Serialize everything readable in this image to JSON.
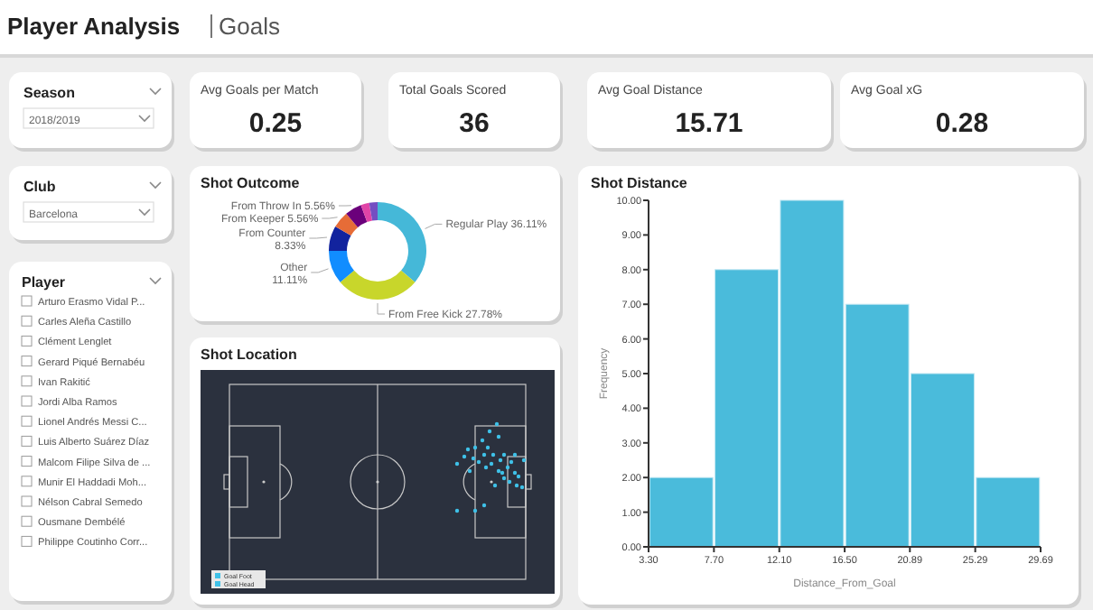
{
  "chart_data": [
    {
      "type": "other",
      "title": "Player Analysis",
      "subtitle": "Goals"
    },
    {
      "type": "other",
      "title": "Season",
      "annotations": [
        "2018/2019"
      ]
    },
    {
      "type": "other",
      "title": "Avg Goals per Match",
      "annotations": [
        "0.25"
      ]
    },
    {
      "type": "other",
      "title": "Total Goals Scored",
      "annotations": [
        "36"
      ]
    },
    {
      "type": "other",
      "title": "Avg Goal Distance",
      "annotations": [
        "15.71"
      ]
    },
    {
      "type": "other",
      "title": "Avg Goal xG",
      "annotations": [
        "0.28"
      ]
    },
    {
      "type": "other",
      "title": "Club",
      "annotations": [
        "Barcelona"
      ]
    },
    {
      "type": "donut",
      "title": "Shot Outcome",
      "categories": [
        "Regular Play",
        "From Free Kick",
        "Other",
        "From Counter",
        "From Keeper",
        "From Throw In",
        null,
        null
      ],
      "values": [
        36.11,
        27.78,
        11.11,
        8.33,
        5.56,
        5.56,
        2.78,
        2.78
      ],
      "value_labels": [
        "36.11%",
        "27.78%",
        "11.11%",
        "8.33%",
        "5.56%",
        "5.56%",
        null,
        null
      ],
      "colors": [
        "#45b8d8",
        "#c8d62b",
        "#118dff",
        "#12239e",
        "#e66c37",
        "#6b007b",
        "#e044a7",
        "#744ec2"
      ]
    },
    {
      "type": "histogram",
      "title": "Shot Distance",
      "xlabel": "Distance_From_Goal",
      "ylabel": "Frequency",
      "bins": [
        3.3,
        7.7,
        12.1,
        16.5,
        20.89,
        25.29,
        29.69
      ],
      "values": [
        2,
        8,
        10,
        7,
        5,
        2
      ],
      "color": "#4abbdb",
      "xlim": [
        3.3,
        29.69
      ],
      "xticks": [
        {
          "value": 3.3,
          "label": "3.30"
        },
        {
          "value": 7.7,
          "label": "7.70"
        },
        {
          "value": 12.1,
          "label": "12.10"
        },
        {
          "value": 16.5,
          "label": "16.50"
        },
        {
          "value": 20.89,
          "label": "20.89"
        },
        {
          "value": 25.29,
          "label": "25.29"
        },
        {
          "value": 29.69,
          "label": "29.69"
        }
      ],
      "ylim": [
        0,
        10
      ],
      "yticks": [
        {
          "value": 0,
          "label": "0.00"
        },
        {
          "value": 1,
          "label": "1.00"
        },
        {
          "value": 2,
          "label": "2.00"
        },
        {
          "value": 3,
          "label": "3.00"
        },
        {
          "value": 4,
          "label": "4.00"
        },
        {
          "value": 5,
          "label": "5.00"
        },
        {
          "value": 6,
          "label": "6.00"
        },
        {
          "value": 7,
          "label": "7.00"
        },
        {
          "value": 8,
          "label": "8.00"
        },
        {
          "value": 9,
          "label": "9.00"
        },
        {
          "value": 10,
          "label": "10.00"
        }
      ]
    },
    {
      "type": "other",
      "title": "Player",
      "annotations": [
        "Arturo Erasmo Vidal P...",
        "Carles Aleña Castillo",
        "Clément Lenglet",
        "Gerard Piqué Bernabéu",
        "Ivan Rakitić",
        "Jordi Alba Ramos",
        "Lionel Andrés Messi C...",
        "Luis Alberto Suárez Díaz",
        "Malcom Filipe Silva de ...",
        "Munir El Haddadi Moh...",
        "Nélson Cabral Semedo",
        "Ousmane Dembélé",
        "Philippe Coutinho Corr..."
      ]
    },
    {
      "type": "other",
      "title": "Shot Location",
      "annotations": [
        "Goal Foot",
        "Goal Head"
      ]
    }
  ]
}
